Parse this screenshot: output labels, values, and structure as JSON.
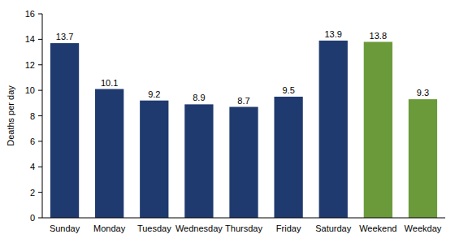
{
  "chart_data": {
    "type": "bar",
    "y_label": "Deaths per day",
    "categories": [
      "Sunday",
      "Monday",
      "Tuesday",
      "Wednesday",
      "Thursday",
      "Friday",
      "Saturday",
      "Weekend",
      "Weekday"
    ],
    "values": [
      13.7,
      10.1,
      9.2,
      8.9,
      8.7,
      9.5,
      13.9,
      13.8,
      9.3
    ],
    "colors": [
      "#1f3a6e",
      "#1f3a6e",
      "#1f3a6e",
      "#1f3a6e",
      "#1f3a6e",
      "#1f3a6e",
      "#1f3a6e",
      "#6b9a3b",
      "#6b9a3b"
    ],
    "ylim": [
      0,
      16
    ],
    "yticks": [
      0,
      2,
      4,
      6,
      8,
      10,
      12,
      14,
      16
    ],
    "grid": false,
    "data_labels": true
  }
}
